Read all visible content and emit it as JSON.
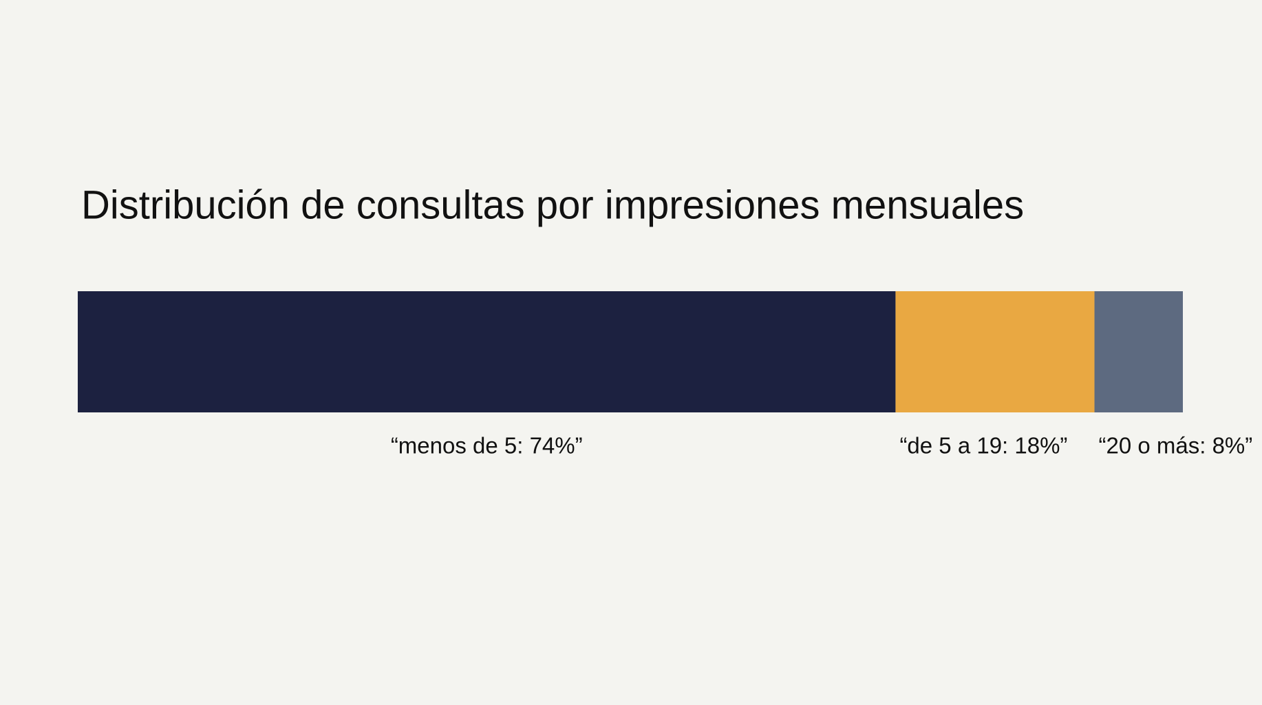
{
  "chart_data": {
    "type": "stacked_bar",
    "title": "Distribución de consultas por impresiones mensuales",
    "values": [
      74,
      18,
      8
    ],
    "value_labels": [
      "“menos de 5: 74%”",
      "“de 5 a 19: 18%”",
      "“20 o más: 8%”"
    ],
    "colors": [
      "#1c2140",
      "#e9a842",
      "#5d6a80"
    ]
  }
}
